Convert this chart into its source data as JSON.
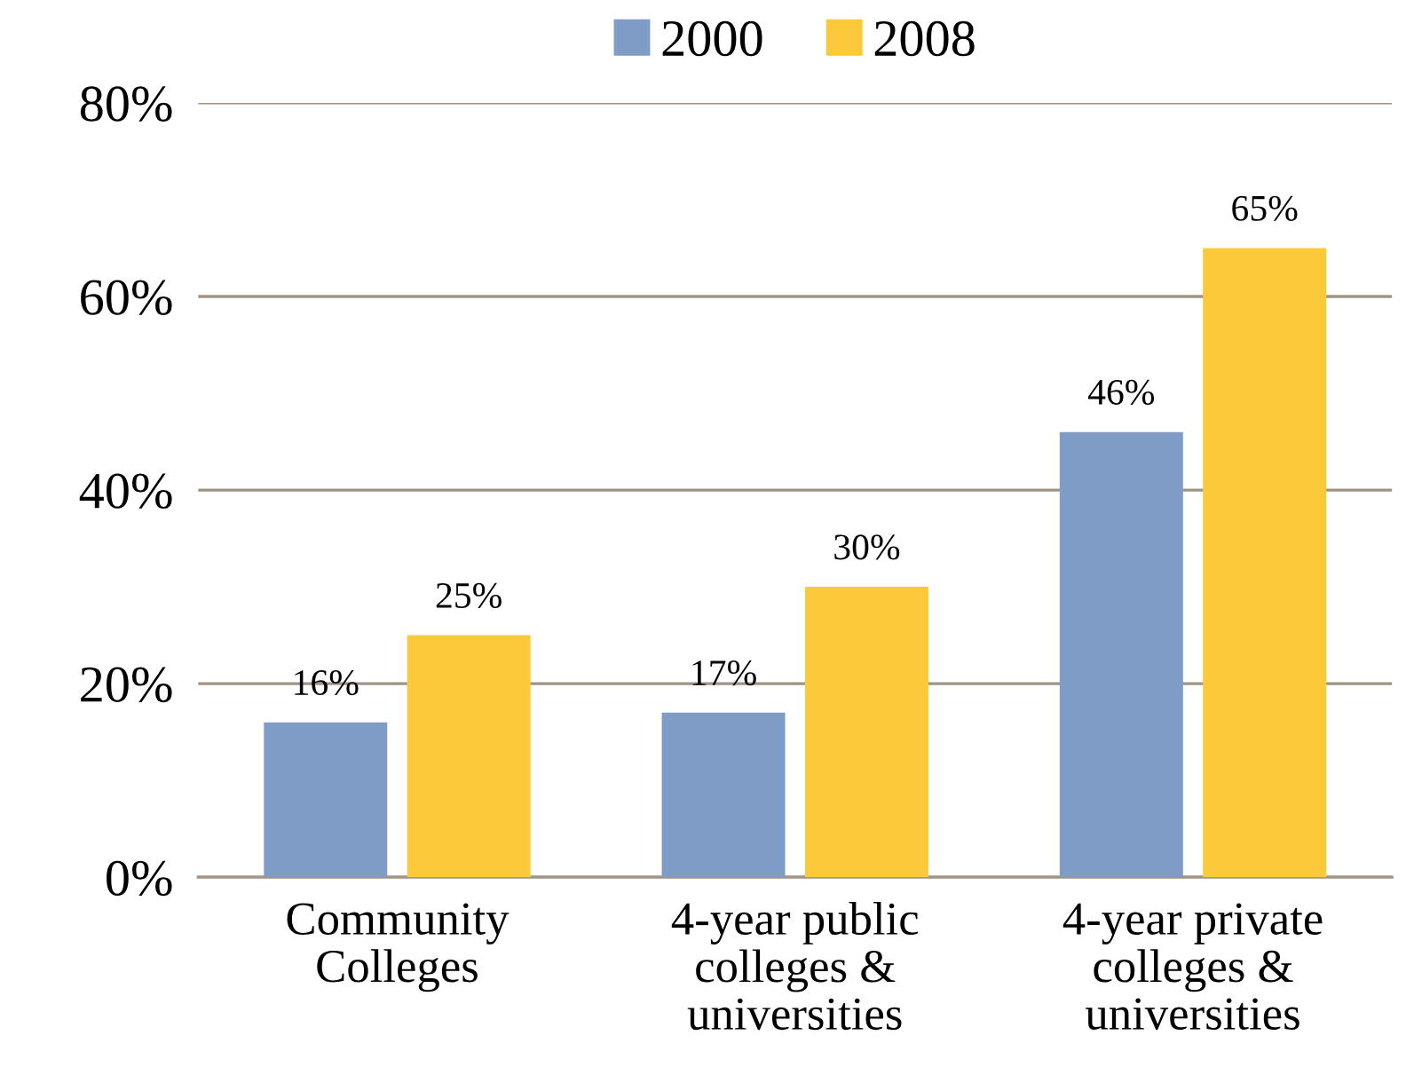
{
  "chart_data": {
    "type": "bar",
    "categories": [
      "Community\nColleges",
      "4-year public\ncolleges &\nuniversities",
      "4-year private\ncolleges &\nuniversities"
    ],
    "series": [
      {
        "name": "2000",
        "color": "#7f9cc6",
        "values": [
          16,
          17,
          46
        ],
        "value_labels": [
          "16%",
          "17%",
          "46%"
        ]
      },
      {
        "name": "2008",
        "color": "#fcc93a",
        "values": [
          25,
          30,
          65
        ],
        "value_labels": [
          "25%",
          "30%",
          "65%"
        ]
      }
    ],
    "ylim": [
      0,
      80
    ],
    "yticks": [
      {
        "value": 0,
        "label": "0%"
      },
      {
        "value": 20,
        "label": "20%"
      },
      {
        "value": 40,
        "label": "40%"
      },
      {
        "value": 60,
        "label": "60%"
      },
      {
        "value": 80,
        "label": "80%"
      }
    ],
    "grid": "y",
    "legend": "top"
  }
}
